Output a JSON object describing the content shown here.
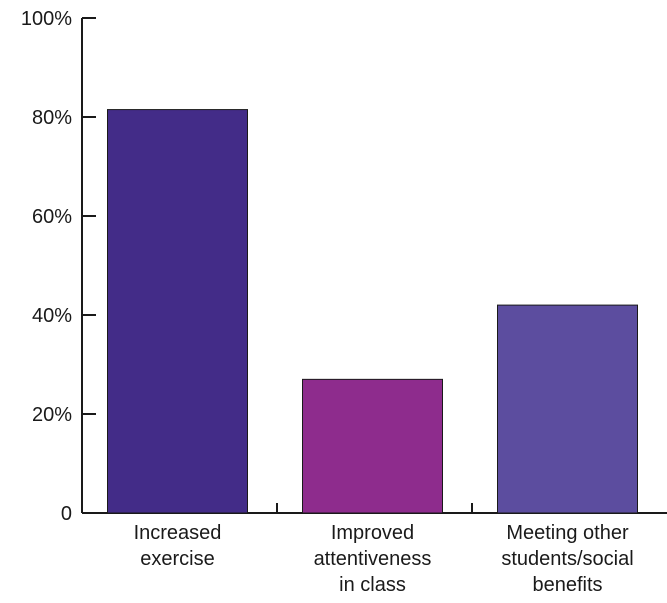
{
  "chart_data": {
    "type": "bar",
    "categories": [
      [
        "Increased",
        "exercise"
      ],
      [
        "Improved",
        "attentiveness",
        "in class"
      ],
      [
        "Meeting other",
        "students/social",
        "benefits"
      ]
    ],
    "values": [
      81.5,
      27,
      42
    ],
    "colors": [
      "#432c88",
      "#8e2c8d",
      "#5c4d9f"
    ],
    "ylim": [
      0,
      100
    ],
    "yticks": [
      0,
      20,
      40,
      60,
      80,
      100
    ],
    "ytick_labels": [
      "0",
      "20%",
      "40%",
      "60%",
      "80%",
      "100%"
    ],
    "title": "",
    "xlabel": "",
    "ylabel": "",
    "grid": false,
    "legend": "none"
  }
}
